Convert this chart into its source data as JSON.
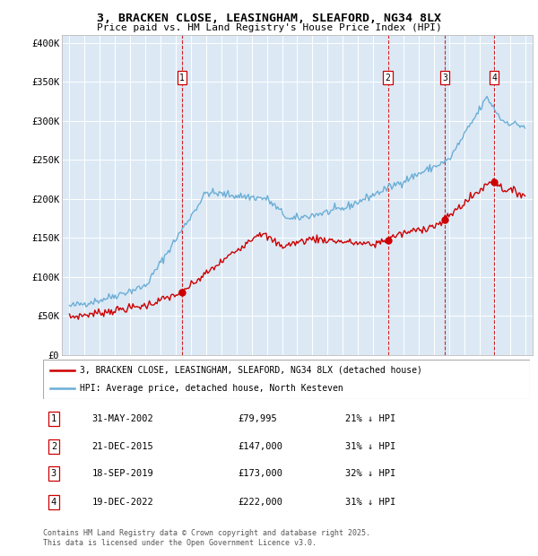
{
  "title": "3, BRACKEN CLOSE, LEASINGHAM, SLEAFORD, NG34 8LX",
  "subtitle": "Price paid vs. HM Land Registry's House Price Index (HPI)",
  "legend_line1": "3, BRACKEN CLOSE, LEASINGHAM, SLEAFORD, NG34 8LX (detached house)",
  "legend_line2": "HPI: Average price, detached house, North Kesteven",
  "footer1": "Contains HM Land Registry data © Crown copyright and database right 2025.",
  "footer2": "This data is licensed under the Open Government Licence v3.0.",
  "sales": [
    {
      "num": 1,
      "date": "31-MAY-2002",
      "price": 79995,
      "pct": "21% ↓ HPI",
      "x_year": 2002.41
    },
    {
      "num": 2,
      "date": "21-DEC-2015",
      "price": 147000,
      "pct": "31% ↓ HPI",
      "x_year": 2015.97
    },
    {
      "num": 3,
      "date": "18-SEP-2019",
      "price": 173000,
      "pct": "32% ↓ HPI",
      "x_year": 2019.71
    },
    {
      "num": 4,
      "date": "19-DEC-2022",
      "price": 222000,
      "pct": "31% ↓ HPI",
      "x_year": 2022.96
    }
  ],
  "hpi_color": "#6baed6",
  "price_color": "#cc0000",
  "sale_marker_color": "#cc0000",
  "vline_color": "#cc0000",
  "background_color": "#dce9f5",
  "plot_bg_color": "#dce9f5",
  "grid_color": "#ffffff",
  "ylim": [
    0,
    410000
  ],
  "xlim_start": 1994.5,
  "xlim_end": 2025.5,
  "yticks": [
    0,
    50000,
    100000,
    150000,
    200000,
    250000,
    300000,
    350000,
    400000
  ],
  "ytick_labels": [
    "£0",
    "£50K",
    "£100K",
    "£150K",
    "£200K",
    "£250K",
    "£300K",
    "£350K",
    "£400K"
  ],
  "xticks": [
    1995,
    1996,
    1997,
    1998,
    1999,
    2000,
    2001,
    2002,
    2003,
    2004,
    2005,
    2006,
    2007,
    2008,
    2009,
    2010,
    2011,
    2012,
    2013,
    2014,
    2015,
    2016,
    2017,
    2018,
    2019,
    2020,
    2021,
    2022,
    2023,
    2024,
    2025
  ]
}
